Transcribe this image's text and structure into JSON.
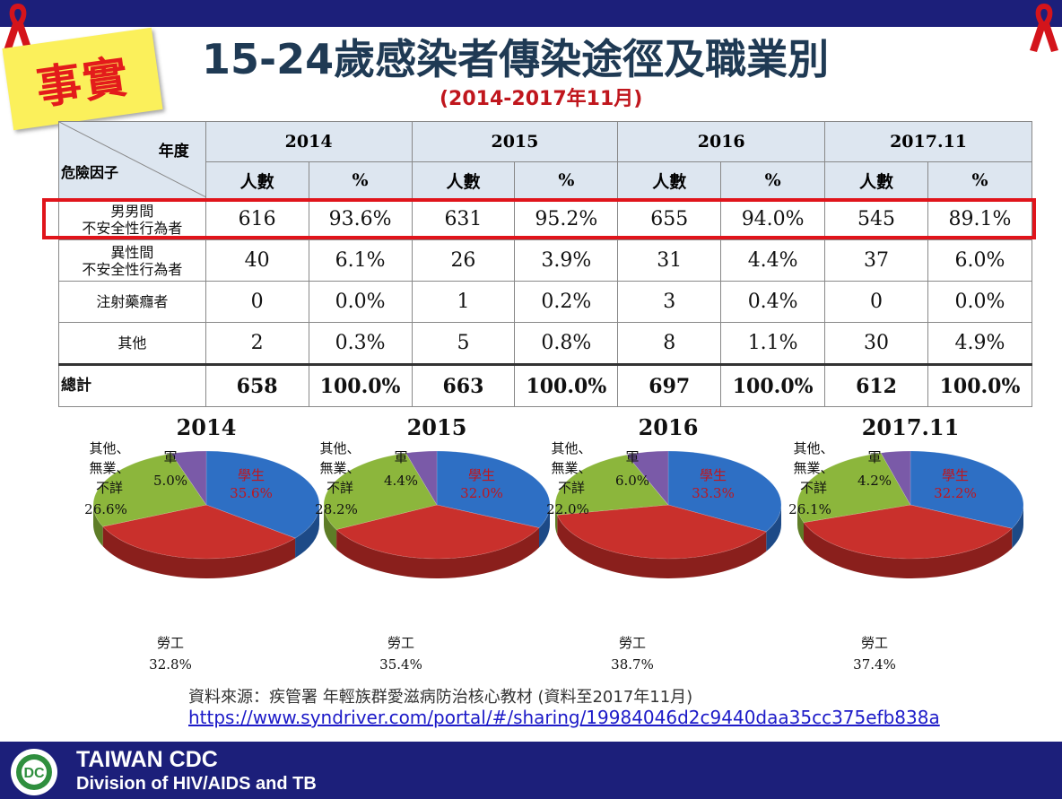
{
  "slide": {
    "badge": "事實",
    "title": "15-24歲感染者傳染途徑及職業別",
    "subtitle": "(2014-2017年11月)",
    "source": "資料來源：疾管署 年輕族群愛滋病防治核心教材 (資料至2017年11月)",
    "link": "https://www.syndriver.com/portal/#/sharing/19984046d2c9440daa35cc375efb838a",
    "footer_org": "TAIWAN CDC",
    "footer_division": "Division of HIV/AIDS and TB",
    "colors": {
      "bar": "#1c1f7a",
      "title": "#1f3a54",
      "accent": "#e0141b",
      "badge": "#fbf05b"
    }
  },
  "table": {
    "corner_year": "年度",
    "corner_factor": "危險因子",
    "years": [
      "2014",
      "2015",
      "2016",
      "2017.11"
    ],
    "sub": [
      "人數",
      "%",
      "人數",
      "%",
      "人數",
      "%",
      "人數",
      "%"
    ],
    "rows": [
      {
        "label1": "男男間",
        "label2": "不安全性行為者",
        "cells": [
          "616",
          "93.6%",
          "631",
          "95.2%",
          "655",
          "94.0%",
          "545",
          "89.1%"
        ]
      },
      {
        "label1": "異性間",
        "label2": "不安全性行為者",
        "cells": [
          "40",
          "6.1%",
          "26",
          "3.9%",
          "31",
          "4.4%",
          "37",
          "6.0%"
        ]
      },
      {
        "label1": "注射藥癮者",
        "label2": "",
        "cells": [
          "0",
          "0.0%",
          "1",
          "0.2%",
          "3",
          "0.4%",
          "0",
          "0.0%"
        ]
      },
      {
        "label1": "其他",
        "label2": "",
        "cells": [
          "2",
          "0.3%",
          "5",
          "0.8%",
          "8",
          "1.1%",
          "30",
          "4.9%"
        ]
      }
    ],
    "total": {
      "label": "總計",
      "cells": [
        "658",
        "100.0%",
        "663",
        "100.0%",
        "697",
        "100.0%",
        "612",
        "100.0%"
      ]
    }
  },
  "chart_data": [
    {
      "type": "pie",
      "title": "2014",
      "slices": [
        {
          "name": "學生",
          "value": 35.6
        },
        {
          "name": "勞工",
          "value": 32.8
        },
        {
          "name": "其他、無業、不詳",
          "value": 26.6
        },
        {
          "name": "軍",
          "value": 5.0
        }
      ],
      "labels": {
        "student": "學生",
        "student_pct": "35.6%",
        "labor": "勞工",
        "labor_pct": "32.8%",
        "other1": "其他、",
        "other2": "無業、",
        "other3": "不詳",
        "other_pct": "26.6%",
        "army": "軍",
        "army_pct": "5.0%"
      }
    },
    {
      "type": "pie",
      "title": "2015",
      "slices": [
        {
          "name": "學生",
          "value": 32.0
        },
        {
          "name": "勞工",
          "value": 35.4
        },
        {
          "name": "其他、無業、不詳",
          "value": 28.2
        },
        {
          "name": "軍",
          "value": 4.4
        }
      ],
      "labels": {
        "student": "學生",
        "student_pct": "32.0%",
        "labor": "勞工",
        "labor_pct": "35.4%",
        "other1": "其他、",
        "other2": "無業、",
        "other3": "不詳",
        "other_pct": "28.2%",
        "army": "軍",
        "army_pct": "4.4%"
      }
    },
    {
      "type": "pie",
      "title": "2016",
      "slices": [
        {
          "name": "學生",
          "value": 33.3
        },
        {
          "name": "勞工",
          "value": 38.7
        },
        {
          "name": "其他、無業、不詳",
          "value": 22.0
        },
        {
          "name": "軍",
          "value": 6.0
        }
      ],
      "labels": {
        "student": "學生",
        "student_pct": "33.3%",
        "labor": "勞工",
        "labor_pct": "38.7%",
        "other1": "其他、",
        "other2": "無業、",
        "other3": "不詳",
        "other_pct": "22.0%",
        "army": "軍",
        "army_pct": "6.0%"
      }
    },
    {
      "type": "pie",
      "title": "2017.11",
      "slices": [
        {
          "name": "學生",
          "value": 32.2
        },
        {
          "name": "勞工",
          "value": 37.4
        },
        {
          "name": "其他、無業、不詳",
          "value": 26.1
        },
        {
          "name": "軍",
          "value": 4.2
        }
      ],
      "labels": {
        "student": "學生",
        "student_pct": "32.2%",
        "labor": "勞工",
        "labor_pct": "37.4%",
        "other1": "其他、",
        "other2": "無業、",
        "other3": "不詳",
        "other_pct": "26.1%",
        "army": "軍",
        "army_pct": "4.2%"
      }
    }
  ],
  "pie_colors": {
    "student": "#2e6fc4",
    "labor": "#c9302c",
    "other": "#8cb63c",
    "army": "#7a5aa8"
  }
}
